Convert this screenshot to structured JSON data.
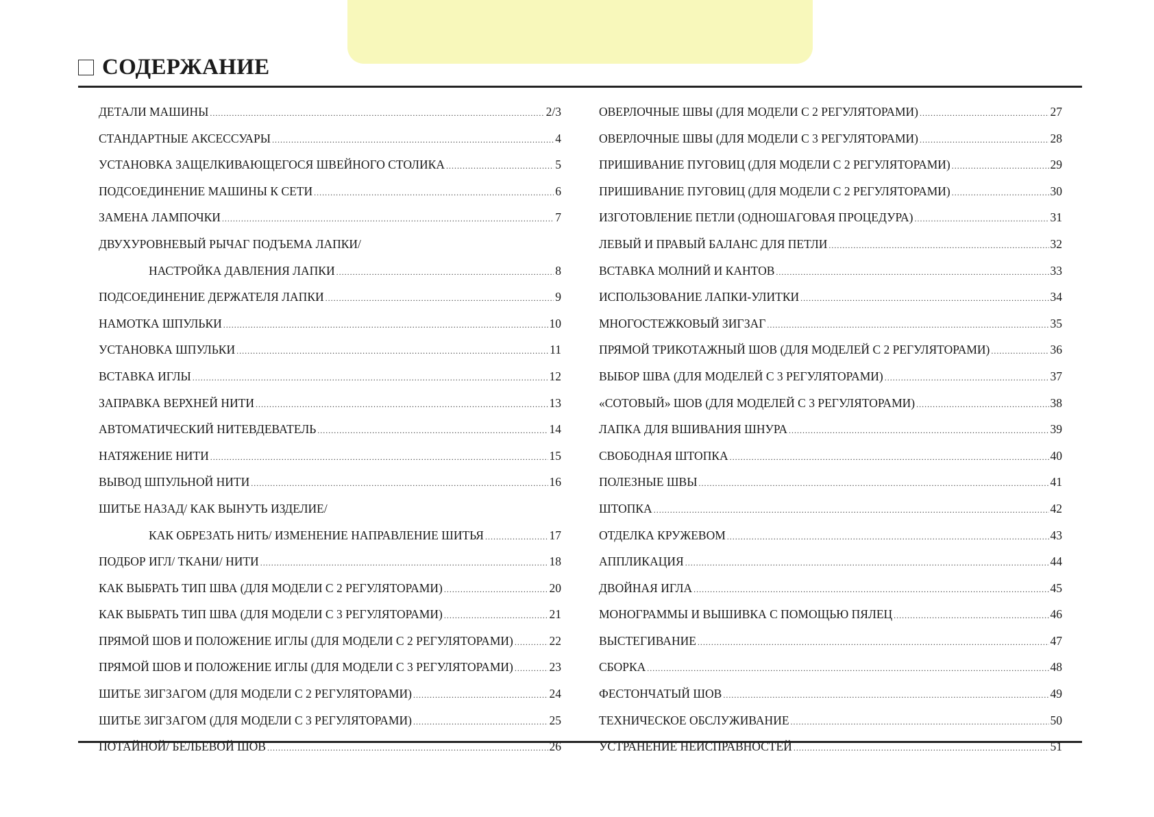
{
  "header": {
    "title": "СОДЕРЖАНИЕ",
    "tab_color": "#f8f8bb"
  },
  "toc_left": [
    {
      "title": "ДЕТАЛИ МАШИНЫ",
      "page": "2/3"
    },
    {
      "title": "СТАНДАРТНЫЕ АКСЕССУАРЫ",
      "page": "4"
    },
    {
      "title": "УСТАНОВКА ЗАЩЕЛКИВАЮЩЕГОСЯ ШВЕЙНОГО СТОЛИКА",
      "page": "5"
    },
    {
      "title": "ПОДСОЕДИНЕНИЕ МАШИНЫ К СЕТИ",
      "page": "6"
    },
    {
      "title": "ЗАМЕНА ЛАМПОЧКИ",
      "page": "7"
    },
    {
      "title": "ДВУХУРОВНЕВЫЙ РЫЧАГ ПОДЪЕМА ЛАПКИ/",
      "page": ""
    },
    {
      "title": "НАСТРОЙКА ДАВЛЕНИЯ ЛАПКИ",
      "page": "8",
      "indent": true
    },
    {
      "title": "ПОДСОЕДИНЕНИЕ ДЕРЖАТЕЛЯ ЛАПКИ",
      "page": "9"
    },
    {
      "title": "НАМОТКА ШПУЛЬКИ",
      "page": "10"
    },
    {
      "title": "УСТАНОВКА ШПУЛЬКИ",
      "page": "11"
    },
    {
      "title": "ВСТАВКА ИГЛЫ",
      "page": "12"
    },
    {
      "title": "ЗАПРАВКА ВЕРХНЕЙ НИТИ",
      "page": "13"
    },
    {
      "title": "АВТОМАТИЧЕСКИЙ НИТЕВДЕВАТЕЛЬ",
      "page": "14"
    },
    {
      "title": "НАТЯЖЕНИЕ НИТИ",
      "page": "15"
    },
    {
      "title": "ВЫВОД ШПУЛЬНОЙ НИТИ",
      "page": "16"
    },
    {
      "title": "ШИТЬЕ НАЗАД/ КАК ВЫНУТЬ ИЗДЕЛИЕ/",
      "page": ""
    },
    {
      "title": "КАК ОБРЕЗАТЬ НИТЬ/ ИЗМЕНЕНИЕ НАПРАВЛЕНИЕ ШИТЬЯ",
      "page": "17",
      "indent": true
    },
    {
      "title": "ПОДБОР ИГЛ/ ТКАНИ/ НИТИ",
      "page": "18"
    },
    {
      "title": "КАК ВЫБРАТЬ ТИП ШВА (ДЛЯ МОДЕЛИ С 2 РЕГУЛЯТОРАМИ)",
      "page": "20"
    },
    {
      "title": "КАК ВЫБРАТЬ ТИП ШВА (ДЛЯ МОДЕЛИ С 3 РЕГУЛЯТОРАМИ)",
      "page": "21"
    },
    {
      "title": "ПРЯМОЙ ШОВ И ПОЛОЖЕНИЕ ИГЛЫ (ДЛЯ МОДЕЛИ С 2 РЕГУЛЯТОРАМИ)",
      "page": "22"
    },
    {
      "title": "ПРЯМОЙ ШОВ И ПОЛОЖЕНИЕ ИГЛЫ (ДЛЯ МОДЕЛИ С 3 РЕГУЛЯТОРАМИ)",
      "page": "23"
    },
    {
      "title": "ШИТЬЕ ЗИГЗАГОМ (ДЛЯ МОДЕЛИ С 2 РЕГУЛЯТОРАМИ)",
      "page": "24"
    },
    {
      "title": "ШИТЬЕ ЗИГЗАГОМ (ДЛЯ МОДЕЛИ С 3 РЕГУЛЯТОРАМИ)",
      "page": "25"
    },
    {
      "title": "ПОТАЙНОЙ/ БЕЛЬЕВОЙ ШОВ",
      "page": "26"
    }
  ],
  "toc_right": [
    {
      "title": "ОВЕРЛОЧНЫЕ ШВЫ (ДЛЯ МОДЕЛИ С 2 РЕГУЛЯТОРАМИ)",
      "page": "27"
    },
    {
      "title": "ОВЕРЛОЧНЫЕ ШВЫ (ДЛЯ МОДЕЛИ С 3 РЕГУЛЯТОРАМИ)",
      "page": "28"
    },
    {
      "title": "ПРИШИВАНИЕ ПУГОВИЦ (ДЛЯ МОДЕЛИ С 2 РЕГУЛЯТОРАМИ)",
      "page": "29"
    },
    {
      "title": "ПРИШИВАНИЕ ПУГОВИЦ (ДЛЯ МОДЕЛИ С 2 РЕГУЛЯТОРАМИ)",
      "page": "30"
    },
    {
      "title": "ИЗГОТОВЛЕНИЕ ПЕТЛИ (ОДНОШАГОВАЯ ПРОЦЕДУРА)",
      "page": "31"
    },
    {
      "title": "ЛЕВЫЙ И ПРАВЫЙ БАЛАНС ДЛЯ ПЕТЛИ",
      "page": "32"
    },
    {
      "title": "ВСТАВКА МОЛНИЙ И КАНТОВ",
      "page": "33"
    },
    {
      "title": "ИСПОЛЬЗОВАНИЕ ЛАПКИ-УЛИТКИ",
      "page": "34"
    },
    {
      "title": "МНОГОСТЕЖКОВЫЙ ЗИГЗАГ",
      "page": "35"
    },
    {
      "title": "ПРЯМОЙ ТРИКОТАЖНЫЙ ШОВ (ДЛЯ МОДЕЛЕЙ С 2 РЕГУЛЯТОРАМИ)",
      "page": "36"
    },
    {
      "title": "ВЫБОР ШВА (ДЛЯ МОДЕЛЕЙ С 3 РЕГУЛЯТОРАМИ)",
      "page": "37"
    },
    {
      "title": "«СОТОВЫЙ» ШОВ (ДЛЯ МОДЕЛЕЙ С 3 РЕГУЛЯТОРАМИ)",
      "page": "38"
    },
    {
      "title": "ЛАПКА ДЛЯ ВШИВАНИЯ ШНУРА",
      "page": "39"
    },
    {
      "title": "СВОБОДНАЯ ШТОПКА",
      "page": "40"
    },
    {
      "title": "ПОЛЕЗНЫЕ ШВЫ",
      "page": "41"
    },
    {
      "title": "ШТОПКА",
      "page": "42"
    },
    {
      "title": "ОТДЕЛКА КРУЖЕВОМ",
      "page": "43"
    },
    {
      "title": "АППЛИКАЦИЯ",
      "page": "44"
    },
    {
      "title": "ДВОЙНАЯ ИГЛА",
      "page": "45"
    },
    {
      "title": "МОНОГРАММЫ И ВЫШИВКА С ПОМОЩЬЮ ПЯЛЕЦ",
      "page": "46"
    },
    {
      "title": "ВЫСТЕГИВАНИЕ",
      "page": "47"
    },
    {
      "title": "СБОРКА",
      "page": "48"
    },
    {
      "title": "ФЕСТОНЧАТЫЙ ШОВ",
      "page": "49"
    },
    {
      "title": "ТЕХНИЧЕСКОЕ ОБСЛУЖИВАНИЕ",
      "page": "50"
    },
    {
      "title": "УСТРАНЕНИЕ НЕИСПРАВНОСТЕЙ",
      "page": "51"
    }
  ]
}
